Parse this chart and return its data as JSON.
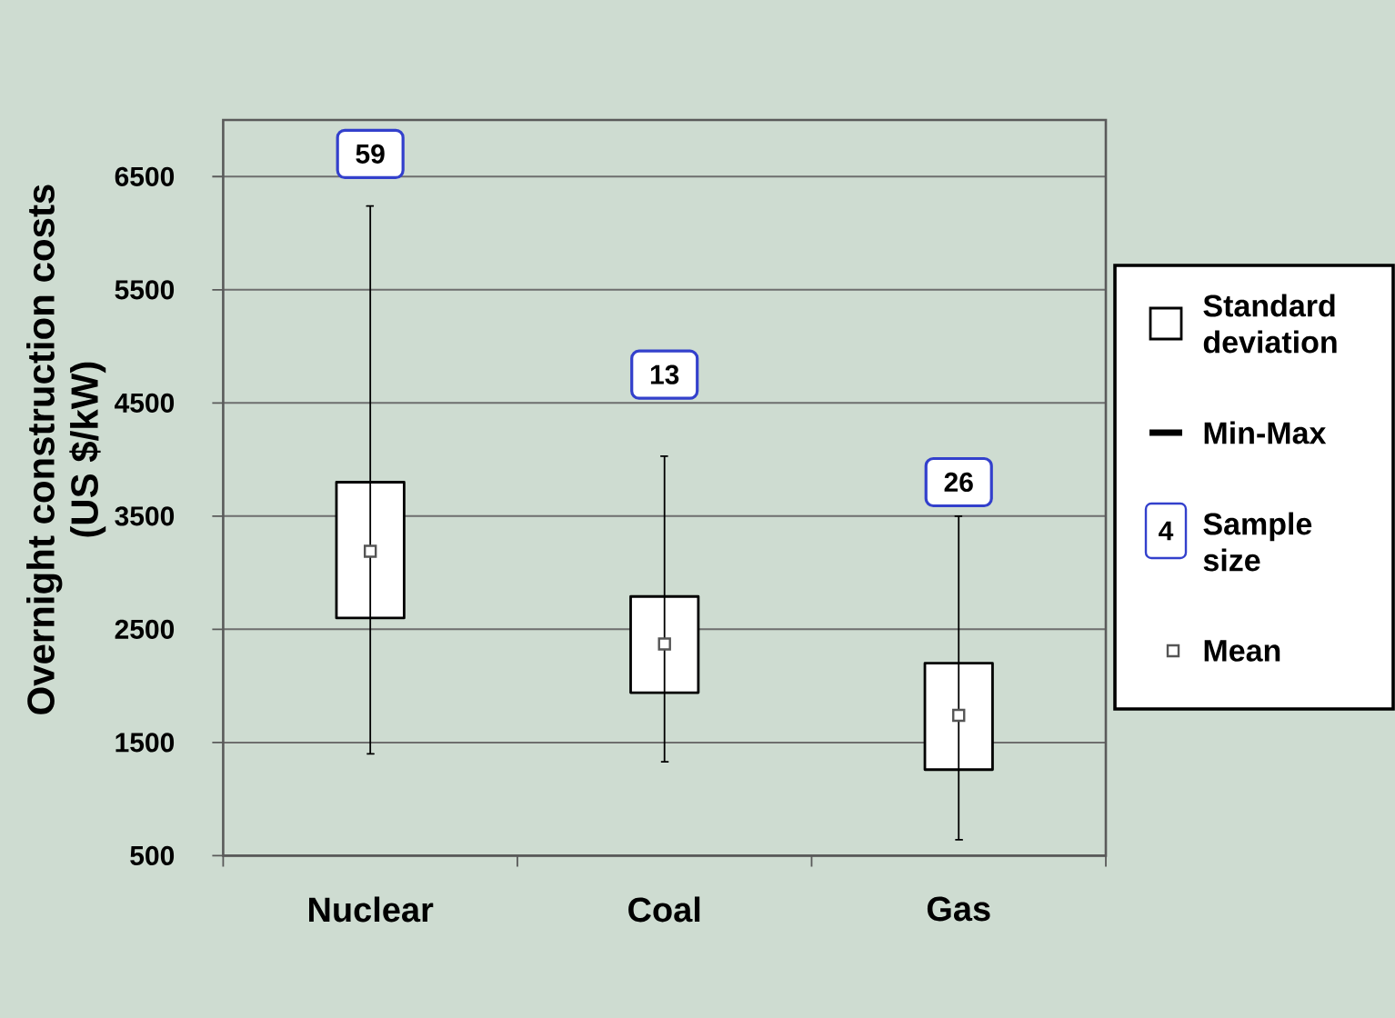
{
  "chart_data": {
    "type": "bar",
    "ylabel": "Overnight construction costs (US $/kW)",
    "categories": [
      "Nuclear",
      "Coal",
      "Gas"
    ],
    "series": [
      {
        "name": "Standard deviation",
        "color": "#000000",
        "base": [
          2600,
          1940,
          1260
        ],
        "values": [
          1200,
          850,
          940
        ],
        "errors": [
          [
            1400,
            6240
          ],
          [
            1330,
            4030
          ],
          [
            640,
            3500
          ]
        ]
      },
      {
        "name": "Mean",
        "type": "scatter",
        "color": "#555555",
        "marker": "square",
        "values": [
          3190,
          2370,
          1740
        ]
      }
    ],
    "ylim": [
      500,
      7000
    ],
    "yticks": [
      500,
      1500,
      2500,
      3500,
      4500,
      5500,
      6500
    ],
    "grid": "y",
    "legend": "right",
    "annotations": [
      {
        "text": "59",
        "x": "Nuclear",
        "y": 6700
      },
      {
        "text": "13",
        "x": "Coal",
        "y": 4750
      },
      {
        "text": "26",
        "x": "Gas",
        "y": 3800
      },
      "Min-Max",
      "4",
      "Sample size"
    ]
  }
}
